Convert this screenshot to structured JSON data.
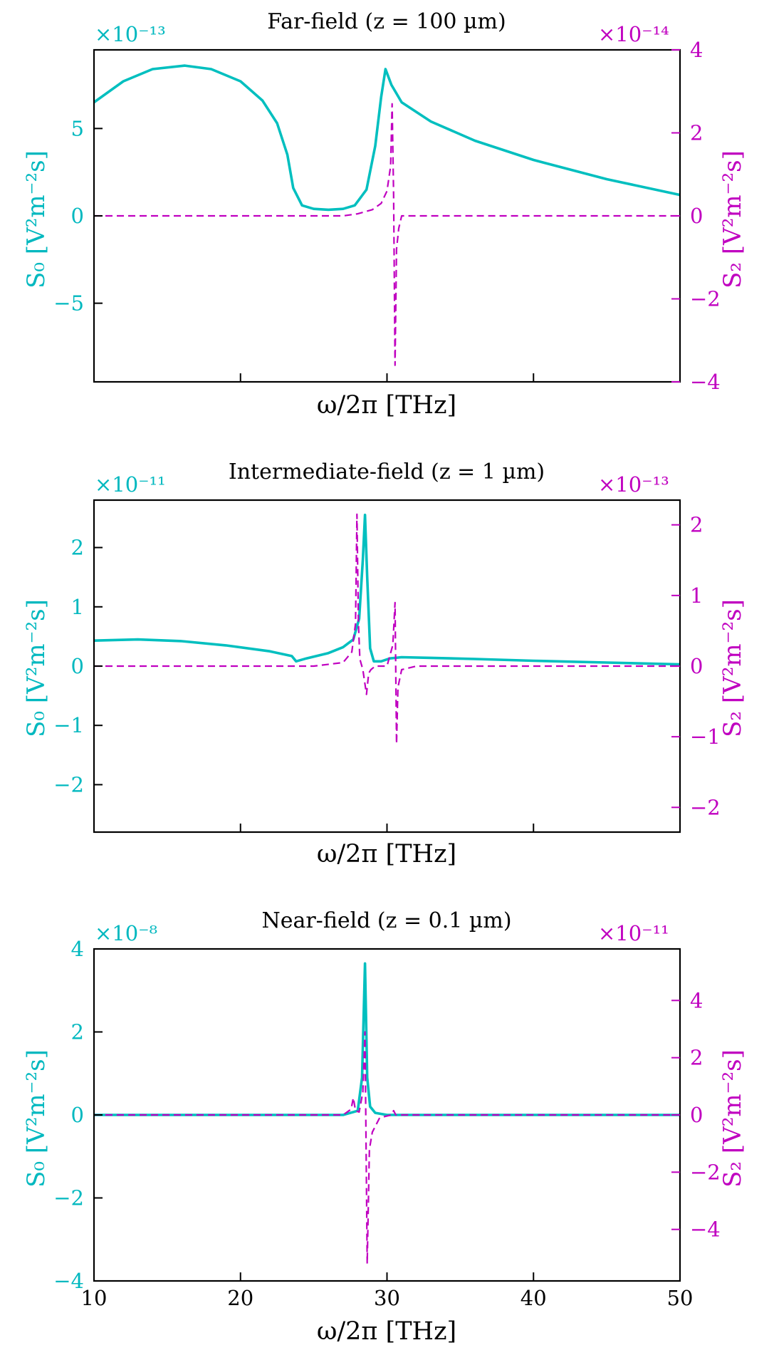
{
  "colors": {
    "s0": "#00bfbf",
    "s2": "#c000c0",
    "s0_text": "#00b8bf",
    "axis": "#000000"
  },
  "chart_data": [
    {
      "type": "line",
      "title": "Far-field (z = 100 µm)",
      "xlabel": "ω/2π [THz]",
      "ylabel_left": "S₀ [V²m⁻²s]",
      "ylabel_right": "S₂ [V²m⁻²s]",
      "left_exponent": "×10⁻¹³",
      "right_exponent": "×10⁻¹⁴",
      "xlim": [
        10,
        50
      ],
      "ylim_left": [
        -9.5,
        9.5
      ],
      "ylim_right": [
        -4,
        4
      ],
      "left_ticks": [
        -5,
        0,
        5
      ],
      "left_tick_labels": [
        "−5",
        "0",
        "5"
      ],
      "right_ticks": [
        -4,
        -2,
        0,
        2,
        4
      ],
      "right_tick_labels": [
        "−4",
        "−2",
        "0",
        "2",
        "4"
      ],
      "x_ticks": [
        20,
        30,
        40
      ],
      "x_tick_labels": [
        "",
        "",
        ""
      ],
      "series": [
        {
          "name": "S0",
          "axis": "left",
          "style": "solid",
          "x": [
            10,
            12,
            14,
            16.2,
            18,
            20,
            21.5,
            22.5,
            23.2,
            23.6,
            24.2,
            25,
            26,
            27,
            27.8,
            28.6,
            29.2,
            29.6,
            29.9,
            30.3,
            31,
            33,
            36,
            40,
            45,
            50
          ],
          "values": [
            6.5,
            7.7,
            8.4,
            8.6,
            8.4,
            7.7,
            6.6,
            5.3,
            3.5,
            1.6,
            0.6,
            0.4,
            0.35,
            0.4,
            0.6,
            1.5,
            4.0,
            6.8,
            8.4,
            7.5,
            6.5,
            5.4,
            4.3,
            3.2,
            2.1,
            1.2
          ]
        },
        {
          "name": "S2",
          "axis": "right",
          "style": "dashed",
          "x": [
            10,
            25,
            27,
            28,
            29,
            29.6,
            30,
            30.25,
            30.35,
            30.45,
            30.55,
            30.65,
            30.8,
            31,
            32,
            40,
            50
          ],
          "values": [
            0,
            0,
            0,
            0.05,
            0.15,
            0.3,
            0.6,
            1.2,
            2.7,
            0.5,
            -3.6,
            -0.8,
            -0.3,
            0,
            0,
            0,
            0
          ]
        }
      ]
    },
    {
      "type": "line",
      "title": "Intermediate-field (z = 1 µm)",
      "xlabel": "ω/2π [THz]",
      "ylabel_left": "S₀ [V²m⁻²s]",
      "ylabel_right": "S₂ [V²m⁻²s]",
      "left_exponent": "×10⁻¹¹",
      "right_exponent": "×10⁻¹³",
      "xlim": [
        10,
        50
      ],
      "ylim_left": [
        -2.8,
        2.8
      ],
      "ylim_right": [
        -2.35,
        2.35
      ],
      "left_ticks": [
        -2,
        -1,
        0,
        1,
        2
      ],
      "left_tick_labels": [
        "−2",
        "−1",
        "0",
        "1",
        "2"
      ],
      "right_ticks": [
        -2,
        -1,
        0,
        1,
        2
      ],
      "right_tick_labels": [
        "−2",
        "−1",
        "0",
        "1",
        "2"
      ],
      "x_ticks": [
        20,
        30,
        40
      ],
      "x_tick_labels": [
        "",
        "",
        ""
      ],
      "series": [
        {
          "name": "S0",
          "axis": "left",
          "style": "solid",
          "x": [
            10,
            13,
            16,
            19,
            22,
            23.5,
            23.8,
            24.5,
            26,
            27,
            27.7,
            28.1,
            28.35,
            28.5,
            28.65,
            28.85,
            29.1,
            29.6,
            30.2,
            31,
            33,
            36,
            40,
            45,
            50
          ],
          "values": [
            0.43,
            0.45,
            0.42,
            0.35,
            0.25,
            0.17,
            0.08,
            0.13,
            0.22,
            0.32,
            0.45,
            0.8,
            1.8,
            2.55,
            1.5,
            0.3,
            0.08,
            0.08,
            0.13,
            0.15,
            0.14,
            0.12,
            0.09,
            0.06,
            0.03
          ]
        },
        {
          "name": "S2",
          "axis": "right",
          "style": "dashed",
          "x": [
            10,
            25,
            27,
            27.6,
            27.85,
            27.95,
            28.05,
            28.15,
            28.35,
            28.6,
            28.75,
            28.9,
            29.2,
            30,
            30.4,
            30.55,
            30.65,
            30.75,
            31,
            32,
            50
          ],
          "values": [
            0,
            0,
            0.05,
            0.2,
            0.6,
            2.15,
            0.6,
            0.1,
            -0.05,
            -0.4,
            -0.1,
            -0.05,
            0,
            0,
            0.3,
            0.9,
            -1.1,
            -0.3,
            -0.05,
            0,
            0
          ]
        }
      ]
    },
    {
      "type": "line",
      "title": "Near-field (z = 0.1 µm)",
      "xlabel": "ω/2π [THz]",
      "ylabel_left": "S₀ [V²m⁻²s]",
      "ylabel_right": "S₂ [V²m⁻²s]",
      "left_exponent": "×10⁻⁸",
      "right_exponent": "×10⁻¹¹",
      "xlim": [
        10,
        50
      ],
      "ylim_left": [
        -4,
        4
      ],
      "ylim_right": [
        -5.8,
        5.8
      ],
      "left_ticks": [
        -4,
        -2,
        0,
        2,
        4
      ],
      "left_tick_labels": [
        "−4",
        "−2",
        "0",
        "2",
        "4"
      ],
      "right_ticks": [
        -4,
        -2,
        0,
        2,
        4
      ],
      "right_tick_labels": [
        "−4",
        "−2",
        "0",
        "2",
        "4"
      ],
      "x_ticks": [
        10,
        20,
        30,
        40,
        50
      ],
      "x_tick_labels": [
        "10",
        "20",
        "30",
        "40",
        "50"
      ],
      "series": [
        {
          "name": "S0",
          "axis": "left",
          "style": "solid",
          "x": [
            10,
            27,
            28,
            28.3,
            28.5,
            28.65,
            28.85,
            29.2,
            30,
            50
          ],
          "values": [
            0,
            0,
            0.1,
            0.9,
            3.65,
            0.9,
            0.2,
            0.05,
            0,
            0
          ]
        },
        {
          "name": "S2",
          "axis": "right",
          "style": "dashed",
          "x": [
            10,
            27,
            27.55,
            27.7,
            27.85,
            28.1,
            28.35,
            28.5,
            28.65,
            28.8,
            29,
            29.5,
            30.3,
            30.45,
            30.6,
            31,
            50
          ],
          "values": [
            0,
            0,
            0.2,
            0.6,
            0.15,
            0.1,
            0.8,
            2.9,
            -5.2,
            -1.2,
            -0.6,
            -0.1,
            0,
            0.15,
            0,
            0,
            0
          ]
        }
      ]
    }
  ]
}
